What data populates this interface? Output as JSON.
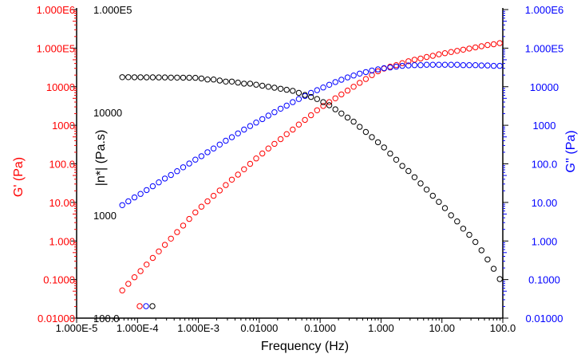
{
  "chart_data": {
    "type": "scatter",
    "title": "",
    "xlabel": "Frequency (Hz)",
    "x_scale": "log",
    "xlim": [
      1e-05,
      100
    ],
    "x_ticks": [
      "1.000E-5",
      "1.000E-4",
      "1.000E-3",
      "0.01000",
      "0.1000",
      "1.000",
      "10.00",
      "100.0"
    ],
    "left_axis": {
      "label": "G' (Pa)",
      "scale": "log",
      "ylim": [
        0.01,
        1000000
      ],
      "ticks": [
        "0.01000",
        "0.1000",
        "1.000",
        "10.00",
        "100.0",
        "1000",
        "10000",
        "1.000E5",
        "1.000E6"
      ],
      "color": "#ff0000"
    },
    "middle_axis": {
      "label": "|n*| (Pa.s)",
      "scale": "log",
      "ylim": [
        100,
        100000
      ],
      "ticks": [
        "100.0",
        "1000",
        "10000",
        "1.000E5"
      ],
      "color": "#000000"
    },
    "right_axis": {
      "label": "G'' (Pa)",
      "scale": "log",
      "ylim": [
        0.01,
        1000000
      ],
      "ticks": [
        "0.01000",
        "0.1000",
        "1.000",
        "10.00",
        "100.0",
        "1000",
        "10000",
        "1.000E5",
        "1.000E6"
      ],
      "color": "#0000ff"
    },
    "x": [
      5.623e-05,
      7.079e-05,
      8.913e-05,
      0.0001122,
      0.0001413,
      0.0001778,
      0.0002239,
      0.0002818,
      0.0003548,
      0.0004467,
      0.0005623,
      0.0007079,
      0.0008913,
      0.001122,
      0.001413,
      0.001778,
      0.002239,
      0.002818,
      0.003548,
      0.004467,
      0.005623,
      0.007079,
      0.008913,
      0.01122,
      0.01413,
      0.01778,
      0.02239,
      0.02818,
      0.03548,
      0.04467,
      0.05623,
      0.07079,
      0.08913,
      0.1122,
      0.1413,
      0.1778,
      0.2239,
      0.2818,
      0.3548,
      0.4467,
      0.5623,
      0.7079,
      0.8913,
      1.122,
      1.413,
      1.778,
      2.239,
      2.818,
      3.548,
      4.467,
      5.623,
      7.079,
      8.913,
      11.22,
      14.13,
      17.78,
      22.39,
      28.18,
      35.48,
      44.67,
      56.23,
      70.79,
      89.13
    ],
    "series": [
      {
        "name": "G' (Pa)",
        "axis": "left",
        "color": "#ff0000",
        "marker": "open-circle",
        "values": [
          0.0525,
          0.0776,
          0.115,
          0.166,
          0.245,
          0.363,
          0.537,
          0.794,
          1.15,
          1.7,
          2.51,
          3.72,
          5.5,
          7.76,
          10.7,
          14.8,
          20.4,
          28.2,
          38.9,
          52.5,
          72.4,
          100,
          138,
          186,
          251,
          331,
          437,
          589,
          776,
          1047,
          1380,
          1820,
          2455,
          3162,
          3981,
          5012,
          6310,
          7943,
          10000,
          12590,
          15850,
          19950,
          25120,
          29510,
          33110,
          36310,
          40740,
          45710,
          50120,
          53700,
          58880,
          63100,
          69180,
          74130,
          79430,
          85110,
          91200,
          97720,
          104700,
          112200,
          120200,
          125900,
          134900
        ]
      },
      {
        "name": "G'' (Pa)",
        "axis": "right",
        "color": "#0000ff",
        "marker": "open-circle",
        "values": [
          8.51,
          10.7,
          13.5,
          16.6,
          20.9,
          26.3,
          33.1,
          41.7,
          51.3,
          64.6,
          81.3,
          102,
          129,
          158,
          200,
          251,
          316,
          398,
          490,
          617,
          776,
          955,
          1175,
          1445,
          1778,
          2188,
          2692,
          3236,
          3981,
          4786,
          5754,
          6918,
          8128,
          9550,
          11220,
          13180,
          15140,
          17380,
          19500,
          21880,
          23990,
          26300,
          28180,
          30200,
          31620,
          33110,
          34670,
          35480,
          36310,
          36310,
          37150,
          37150,
          37150,
          37150,
          37150,
          37150,
          36310,
          36310,
          36310,
          35480,
          35480,
          34670,
          34670
        ]
      },
      {
        "name": "|n*| (Pa.s)",
        "axis": "middle",
        "color": "#000000",
        "marker": "open-circle",
        "values": [
          22030,
          22030,
          21980,
          21980,
          21930,
          21930,
          21880,
          21880,
          21830,
          21830,
          21780,
          21730,
          21680,
          21380,
          20890,
          20890,
          20420,
          19950,
          19950,
          19500,
          19050,
          19050,
          18620,
          18200,
          17780,
          17380,
          16980,
          16600,
          16220,
          15490,
          14790,
          14130,
          13490,
          12590,
          11750,
          10720,
          9772,
          8913,
          8128,
          7244,
          6457,
          5754,
          5129,
          4571,
          3981,
          3467,
          3020,
          2692,
          2344,
          2042,
          1778,
          1549,
          1349,
          1175,
          1000,
          871,
          741,
          646,
          550,
          457,
          372,
          302,
          240
        ]
      }
    ],
    "legend_symbols": [
      {
        "color": "#ff0000",
        "marker": "open-circle"
      },
      {
        "color": "#0000ff",
        "marker": "open-circle"
      },
      {
        "color": "#000000",
        "marker": "open-circle"
      }
    ],
    "grid": false
  }
}
